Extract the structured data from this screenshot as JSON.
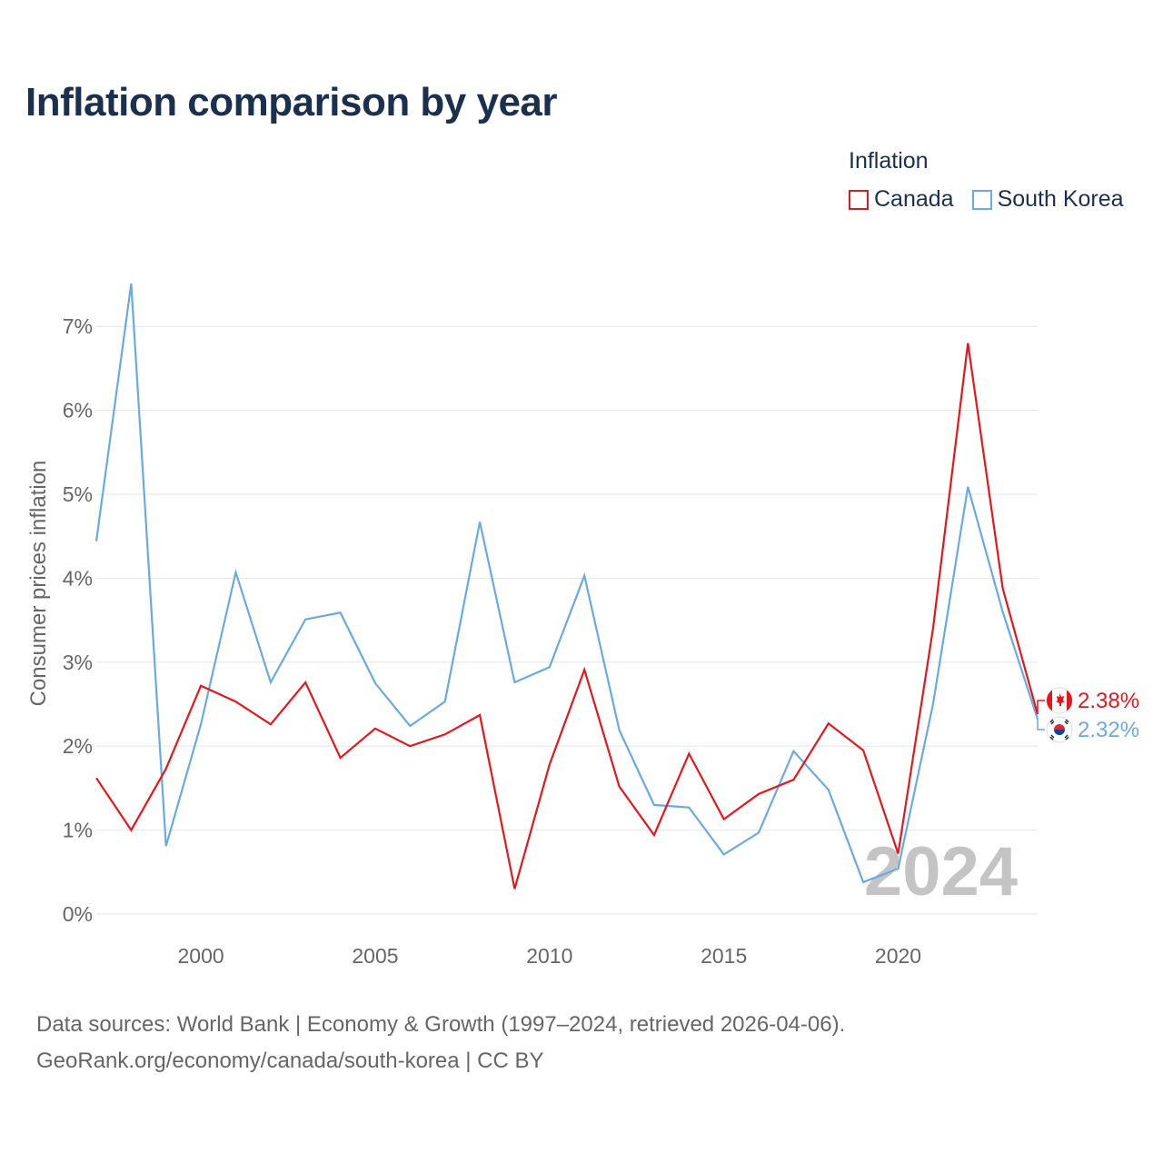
{
  "title": "Inflation comparison by year",
  "legend": {
    "title": "Inflation",
    "items": [
      {
        "label": "Canada",
        "color": "#e8161b"
      },
      {
        "label": "South Korea",
        "color": "#6aaae4"
      }
    ]
  },
  "watermark_year": "2024",
  "source": {
    "line1": "Data sources: World Bank | Economy & Growth (1997–2024, retrieved 2026-04-06).",
    "line2": "GeoRank.org/economy/canada/south-korea | CC BY"
  },
  "end_labels": {
    "canada": "2.38%",
    "south_korea": "2.32%"
  },
  "chart_data": {
    "type": "line",
    "title": "Inflation comparison by year",
    "xlabel": "",
    "ylabel": "Consumer prices inflation",
    "x": [
      1997,
      1998,
      1999,
      2000,
      2001,
      2002,
      2003,
      2004,
      2005,
      2006,
      2007,
      2008,
      2009,
      2010,
      2011,
      2012,
      2013,
      2014,
      2015,
      2016,
      2017,
      2018,
      2019,
      2020,
      2021,
      2022,
      2023,
      2024
    ],
    "series": [
      {
        "name": "Canada",
        "color": "#e8161b",
        "values": [
          1.62,
          1.0,
          1.73,
          2.72,
          2.53,
          2.26,
          2.76,
          1.86,
          2.21,
          2.0,
          2.14,
          2.37,
          0.3,
          1.78,
          2.91,
          1.52,
          0.94,
          1.91,
          1.13,
          1.43,
          1.6,
          2.27,
          1.95,
          0.72,
          3.4,
          6.8,
          3.88,
          2.38
        ]
      },
      {
        "name": "South Korea",
        "color": "#6aaae4",
        "values": [
          4.44,
          7.51,
          0.81,
          2.26,
          4.07,
          2.76,
          3.51,
          3.59,
          2.75,
          2.24,
          2.53,
          4.67,
          2.76,
          2.94,
          4.03,
          2.19,
          1.3,
          1.27,
          0.71,
          0.97,
          1.94,
          1.48,
          0.38,
          0.54,
          2.5,
          5.09,
          3.6,
          2.32
        ]
      }
    ],
    "xticks": [
      2000,
      2005,
      2010,
      2015,
      2020
    ],
    "xtick_labels": [
      "2000",
      "2005",
      "2010",
      "2015",
      "2020"
    ],
    "yticks": [
      0,
      1,
      2,
      3,
      4,
      5,
      6,
      7
    ],
    "ytick_labels": [
      "0%",
      "1%",
      "2%",
      "3%",
      "4%",
      "5%",
      "6%",
      "7%"
    ],
    "xlim": [
      1997,
      2024
    ],
    "ylim": [
      0,
      7
    ],
    "grid": true,
    "legend_position": "top-right"
  }
}
